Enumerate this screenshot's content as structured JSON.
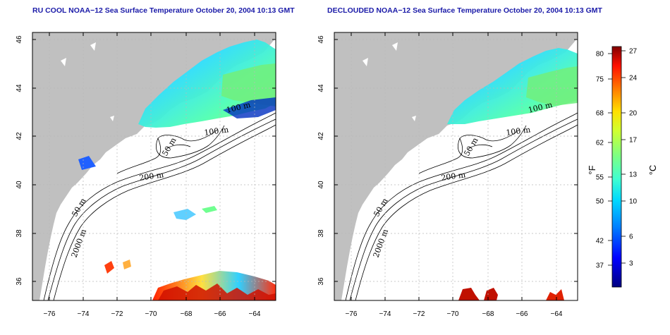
{
  "maps": [
    {
      "id": "left",
      "title": "RU COOL NOAA−12 Sea Surface Temperature October 20, 2004 10:13 GMT",
      "x_ticks": [
        "−76",
        "−74",
        "−72",
        "−70",
        "−68",
        "−66",
        "−64"
      ],
      "y_ticks": [
        "36",
        "38",
        "40",
        "42",
        "44",
        "46"
      ],
      "contour_labels": [
        "100 m",
        "100 m",
        "50 m",
        "200 m",
        "50 m",
        "2000 m"
      ]
    },
    {
      "id": "right",
      "title": "DECLOUDED NOAA−12 Sea Surface Temperature October 20, 2004 10:13 GMT",
      "x_ticks": [
        "−76",
        "−74",
        "−72",
        "−70",
        "−68",
        "−66",
        "−64"
      ],
      "y_ticks": [
        "36",
        "38",
        "40",
        "42",
        "44",
        "46"
      ],
      "contour_labels": [
        "100 m",
        "100 m",
        "50 m",
        "200 m",
        "50 m",
        "2000 m"
      ]
    }
  ],
  "colorbar": {
    "fahrenheit_unit": "°F",
    "celsius_unit": "°C",
    "fahrenheit_ticks": [
      "80",
      "75",
      "68",
      "62",
      "55",
      "50",
      "42",
      "37"
    ],
    "celsius_ticks": [
      "27",
      "24",
      "20",
      "17",
      "13",
      "10",
      "6",
      "3"
    ]
  },
  "colors": {
    "title": "#1a1aa8",
    "land": "#c0c0c0",
    "grid": "#b8b8b8"
  }
}
